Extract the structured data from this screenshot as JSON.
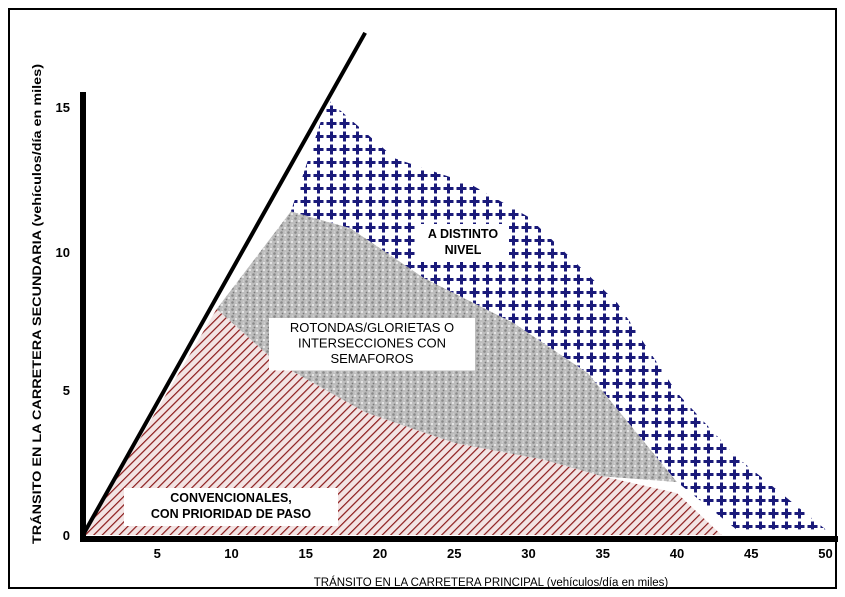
{
  "chart_data": {
    "type": "area",
    "x_axis": {
      "label": "TRÁNSITO EN LA CARRETERA PRINCIPAL (vehículos/día en miles)",
      "range": [
        0,
        50
      ],
      "ticks": [
        "5",
        "10",
        "15",
        "20",
        "25",
        "30",
        "35",
        "40",
        "45",
        "50"
      ]
    },
    "y_axis": {
      "label": "TRÁNSITO EN LA CARRETERA SECUNDARIA (vehículos/día en miles)",
      "range": [
        0,
        16
      ],
      "ticks": [
        "0",
        "5",
        "10",
        "15"
      ]
    },
    "regions": [
      {
        "name": "convencionales",
        "label_lines": [
          "CONVENCIONALES,",
          "CON PRIORIDAD DE PASO"
        ],
        "color": "#8b1a1a",
        "pattern": "diagonal-hatch",
        "polygon": [
          [
            0,
            0
          ],
          [
            9,
            8.1
          ],
          [
            13,
            6.2
          ],
          [
            19,
            4.4
          ],
          [
            25,
            3.3
          ],
          [
            31,
            2.7
          ],
          [
            35,
            2.1
          ],
          [
            40,
            1.5
          ],
          [
            43,
            0
          ]
        ]
      },
      {
        "name": "rotondas-semaforos",
        "label_lines": [
          "ROTONDAS/GLORIETAS O",
          "INTERSECCIONES CON",
          "SEMAFOROS"
        ],
        "color": "#9c9c9c",
        "pattern": "stipple",
        "polygon": [
          [
            9,
            8.1
          ],
          [
            14,
            11.6
          ],
          [
            18,
            11.0
          ],
          [
            23,
            9.2
          ],
          [
            29,
            7.6
          ],
          [
            34,
            5.8
          ],
          [
            40,
            1.9
          ],
          [
            35,
            2.1
          ],
          [
            31,
            2.7
          ],
          [
            25,
            3.3
          ],
          [
            19,
            4.4
          ],
          [
            13,
            6.2
          ]
        ]
      },
      {
        "name": "a-distinto-nivel",
        "label_lines": [
          "A DISTINTO",
          "NIVEL"
        ],
        "color": "#1a1a7a",
        "pattern": "plus-signs",
        "polygon": [
          [
            14,
            11.6
          ],
          [
            16.5,
            15.6
          ],
          [
            21,
            13.5
          ],
          [
            26,
            12.6
          ],
          [
            30,
            11.4
          ],
          [
            36,
            8.3
          ],
          [
            40,
            5.1
          ],
          [
            44,
            2.8
          ],
          [
            50,
            0.2
          ],
          [
            44,
            0.2
          ],
          [
            40,
            1.9
          ],
          [
            34,
            5.8
          ],
          [
            29,
            7.6
          ],
          [
            23,
            9.2
          ],
          [
            18,
            11.0
          ]
        ]
      }
    ],
    "boundary_line": {
      "from": [
        0,
        0
      ],
      "to": [
        19,
        18
      ]
    },
    "grid": false,
    "legend": "none"
  }
}
